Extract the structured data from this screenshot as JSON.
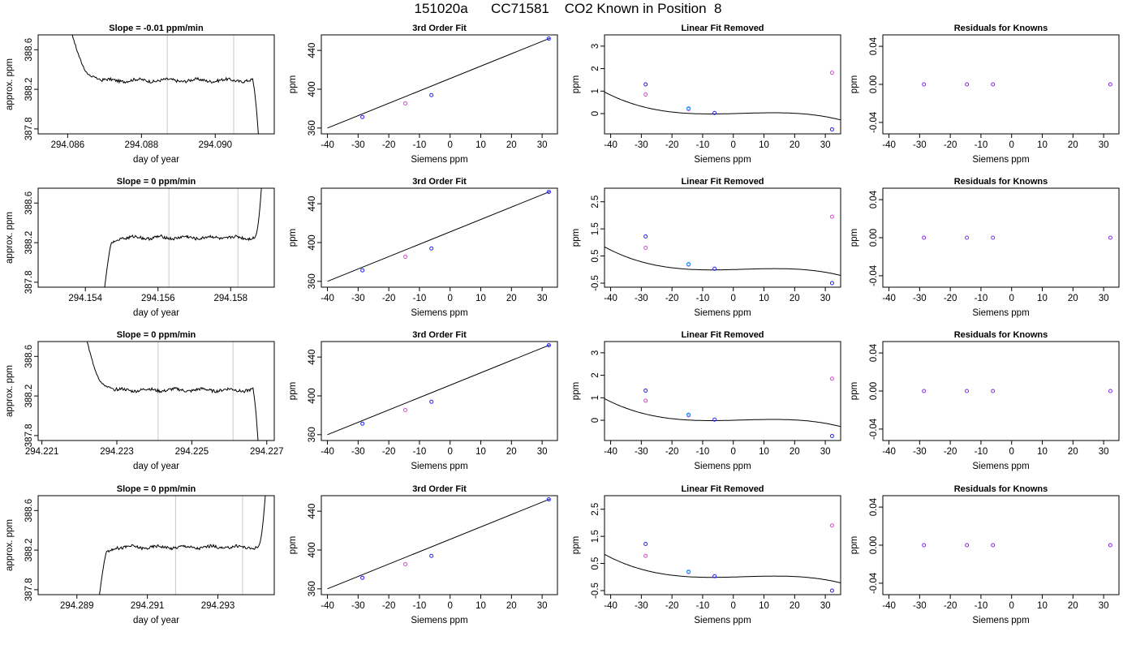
{
  "page_title": "151020a      CC71581    CO2 Known in Position  8",
  "colors": {
    "gridline": "#c8c8c8",
    "point_primary": "#2020ff",
    "point_secondary": "#e040e0",
    "point_alt": "#00a0ff",
    "curve": "#000000"
  },
  "chart_data": [
    {
      "type": "line",
      "title": "Slope =  -0.01  ppm/min",
      "xlabel": "day of year",
      "ylabel": "approx. ppm",
      "xlim": [
        294.0852,
        294.0916
      ],
      "ylim": [
        387.75,
        388.75
      ],
      "xticks": [
        294.086,
        294.088,
        294.09
      ],
      "xtick_labels": [
        "294.086",
        "294.088",
        "294.090"
      ],
      "yticks": [
        387.8,
        388.2,
        388.6
      ],
      "ytick_labels": [
        "387.8",
        "388.2",
        "388.6"
      ],
      "vlines": [
        294.0887,
        294.0905
      ],
      "profile": "high_start_drop_end",
      "x_start": 294.0861,
      "x_end": 294.0912,
      "plateau": 388.29
    },
    {
      "type": "scatter",
      "title": "3rd Order Fit",
      "xlabel": "Siemens ppm",
      "ylabel": "ppm",
      "xlim": [
        -42,
        35
      ],
      "ylim": [
        354,
        456
      ],
      "xticks": [
        -40,
        -30,
        -20,
        -10,
        0,
        10,
        20,
        30
      ],
      "xtick_labels": [
        "-40",
        "-30",
        "-20",
        "-10",
        "0",
        "10",
        "20",
        "30"
      ],
      "yticks": [
        360,
        400,
        440
      ],
      "ytick_labels": [
        "360",
        "400",
        "440"
      ],
      "points": [
        [
          -28.6,
          371.4
        ],
        [
          -14.6,
          385.4
        ],
        [
          -6.1,
          393.9
        ],
        [
          32.2,
          452.2
        ]
      ],
      "curve": [
        [
          -40,
          360
        ],
        [
          32.5,
          452.5
        ]
      ]
    },
    {
      "type": "scatter",
      "title": "Linear Fit Removed",
      "xlabel": "Siemens ppm",
      "ylabel": "ppm",
      "xlim": [
        -42,
        35
      ],
      "ylim": [
        -0.9,
        3.5
      ],
      "xticks": [
        -40,
        -30,
        -20,
        -10,
        0,
        10,
        20,
        30
      ],
      "xtick_labels": [
        "-40",
        "-30",
        "-20",
        "-10",
        "0",
        "10",
        "20",
        "30"
      ],
      "yticks": [
        0,
        1,
        2,
        3
      ],
      "ytick_labels": [
        "0",
        "1",
        "2",
        "3"
      ],
      "points_primary": [
        [
          -28.6,
          1.3
        ],
        [
          -14.6,
          0.23
        ],
        [
          -6.1,
          0.03
        ],
        [
          32.2,
          -0.7
        ]
      ],
      "points_secondary": [
        [
          -28.6,
          0.85
        ],
        [
          -14.6,
          0.2
        ],
        [
          32.2,
          1.82
        ]
      ],
      "curve_coeffs": [
        0.0005,
        0.0036,
        0.000105,
        -1.25e-05
      ]
    },
    {
      "type": "scatter",
      "title": "Residuals for Knowns",
      "xlabel": "Siemens ppm",
      "ylabel": "ppm",
      "xlim": [
        -42,
        35
      ],
      "ylim": [
        -0.052,
        0.052
      ],
      "xticks": [
        -40,
        -30,
        -20,
        -10,
        0,
        10,
        20,
        30
      ],
      "xtick_labels": [
        "-40",
        "-30",
        "-20",
        "-10",
        "0",
        "10",
        "20",
        "30"
      ],
      "yticks": [
        -0.04,
        0,
        0.04
      ],
      "ytick_labels": [
        "-0.04",
        "0.00",
        "0.04"
      ],
      "points": [
        [
          -28.6,
          0
        ],
        [
          -14.6,
          0
        ],
        [
          -6.1,
          0
        ],
        [
          32.2,
          0
        ]
      ]
    },
    {
      "type": "line",
      "title": "Slope =  0  ppm/min",
      "xlabel": "day of year",
      "ylabel": "approx. ppm",
      "xlim": [
        294.1527,
        294.1592
      ],
      "ylim": [
        387.75,
        388.75
      ],
      "xticks": [
        294.154,
        294.156,
        294.158
      ],
      "xtick_labels": [
        "294.154",
        "294.156",
        "294.158"
      ],
      "yticks": [
        387.8,
        388.2,
        388.6
      ],
      "ytick_labels": [
        "387.8",
        "388.2",
        "388.6"
      ],
      "vlines": [
        294.1563,
        294.1582
      ],
      "profile": "low_start_rise_end",
      "x_start": 294.1545,
      "x_end": 294.1589,
      "plateau": 388.25
    },
    {
      "type": "scatter",
      "title": "3rd Order Fit",
      "xlabel": "Siemens ppm",
      "ylabel": "ppm",
      "xlim": [
        -42,
        35
      ],
      "ylim": [
        354,
        456
      ],
      "xticks": [
        -40,
        -30,
        -20,
        -10,
        0,
        10,
        20,
        30
      ],
      "xtick_labels": [
        "-40",
        "-30",
        "-20",
        "-10",
        "0",
        "10",
        "20",
        "30"
      ],
      "yticks": [
        360,
        400,
        440
      ],
      "ytick_labels": [
        "360",
        "400",
        "440"
      ],
      "points": [
        [
          -28.6,
          371.4
        ],
        [
          -14.6,
          385.4
        ],
        [
          -6.1,
          393.9
        ],
        [
          32.2,
          452.2
        ]
      ],
      "curve": [
        [
          -40,
          360
        ],
        [
          32.5,
          452.5
        ]
      ]
    },
    {
      "type": "scatter",
      "title": "Linear Fit Removed",
      "xlabel": "Siemens ppm",
      "ylabel": "ppm",
      "xlim": [
        -42,
        35
      ],
      "ylim": [
        -0.65,
        3.0
      ],
      "xticks": [
        -40,
        -30,
        -20,
        -10,
        0,
        10,
        20,
        30
      ],
      "xtick_labels": [
        "-40",
        "-30",
        "-20",
        "-10",
        "0",
        "10",
        "20",
        "30"
      ],
      "yticks": [
        -0.5,
        0.5,
        1.5,
        2.5
      ],
      "ytick_labels": [
        "-0.5",
        "0.5",
        "1.5",
        "2.5"
      ],
      "points_primary": [
        [
          -28.6,
          1.22
        ],
        [
          -14.6,
          0.2
        ],
        [
          -6.1,
          0.03
        ],
        [
          32.2,
          -0.5
        ]
      ],
      "points_secondary": [
        [
          -28.6,
          0.8
        ],
        [
          -14.6,
          0.18
        ],
        [
          32.2,
          1.95
        ]
      ],
      "curve_coeffs": [
        0.0,
        0.003,
        0.000105,
        -1.05e-05
      ]
    },
    {
      "type": "scatter",
      "title": "Residuals for Knowns",
      "xlabel": "Siemens ppm",
      "ylabel": "ppm",
      "xlim": [
        -42,
        35
      ],
      "ylim": [
        -0.052,
        0.052
      ],
      "xticks": [
        -40,
        -30,
        -20,
        -10,
        0,
        10,
        20,
        30
      ],
      "xtick_labels": [
        "-40",
        "-30",
        "-20",
        "-10",
        "0",
        "10",
        "20",
        "30"
      ],
      "yticks": [
        -0.04,
        0,
        0.04
      ],
      "ytick_labels": [
        "-0.04",
        "0.00",
        "0.04"
      ],
      "points": [
        [
          -28.6,
          0
        ],
        [
          -14.6,
          0
        ],
        [
          -6.1,
          0
        ],
        [
          32.2,
          0
        ]
      ]
    },
    {
      "type": "line",
      "title": "Slope =  0  ppm/min",
      "xlabel": "day of year",
      "ylabel": "approx. ppm",
      "xlim": [
        294.2209,
        294.2272
      ],
      "ylim": [
        387.75,
        388.75
      ],
      "xticks": [
        294.221,
        294.223,
        294.225,
        294.227
      ],
      "xtick_labels": [
        "294.221",
        "294.223",
        "294.225",
        "294.227"
      ],
      "yticks": [
        387.8,
        388.2,
        388.6
      ],
      "ytick_labels": [
        "387.8",
        "388.2",
        "388.6"
      ],
      "vlines": [
        294.2241,
        294.2261
      ],
      "profile": "high_start_drop_end",
      "x_start": 294.2222,
      "x_end": 294.2268,
      "plateau": 388.26
    },
    {
      "type": "scatter",
      "title": "3rd Order Fit",
      "xlabel": "Siemens ppm",
      "ylabel": "ppm",
      "xlim": [
        -42,
        35
      ],
      "ylim": [
        354,
        456
      ],
      "xticks": [
        -40,
        -30,
        -20,
        -10,
        0,
        10,
        20,
        30
      ],
      "xtick_labels": [
        "-40",
        "-30",
        "-20",
        "-10",
        "0",
        "10",
        "20",
        "30"
      ],
      "yticks": [
        360,
        400,
        440
      ],
      "ytick_labels": [
        "360",
        "400",
        "440"
      ],
      "points": [
        [
          -28.6,
          371.4
        ],
        [
          -14.6,
          385.4
        ],
        [
          -6.1,
          393.9
        ],
        [
          32.2,
          452.2
        ]
      ],
      "curve": [
        [
          -40,
          360
        ],
        [
          32.5,
          452.5
        ]
      ]
    },
    {
      "type": "scatter",
      "title": "Linear Fit Removed",
      "xlabel": "Siemens ppm",
      "ylabel": "ppm",
      "xlim": [
        -42,
        35
      ],
      "ylim": [
        -0.9,
        3.5
      ],
      "xticks": [
        -40,
        -30,
        -20,
        -10,
        0,
        10,
        20,
        30
      ],
      "xtick_labels": [
        "-40",
        "-30",
        "-20",
        "-10",
        "0",
        "10",
        "20",
        "30"
      ],
      "yticks": [
        0,
        1,
        2,
        3
      ],
      "ytick_labels": [
        "0",
        "1",
        "2",
        "3"
      ],
      "points_primary": [
        [
          -28.6,
          1.32
        ],
        [
          -14.6,
          0.25
        ],
        [
          -6.1,
          0.03
        ],
        [
          32.2,
          -0.7
        ]
      ],
      "points_secondary": [
        [
          -28.6,
          0.87
        ],
        [
          -14.6,
          0.22
        ],
        [
          32.2,
          1.85
        ]
      ],
      "curve_coeffs": [
        0.0005,
        0.0036,
        0.000105,
        -1.25e-05
      ]
    },
    {
      "type": "scatter",
      "title": "Residuals for Knowns",
      "xlabel": "Siemens ppm",
      "ylabel": "ppm",
      "xlim": [
        -42,
        35
      ],
      "ylim": [
        -0.052,
        0.052
      ],
      "xticks": [
        -40,
        -30,
        -20,
        -10,
        0,
        10,
        20,
        30
      ],
      "xtick_labels": [
        "-40",
        "-30",
        "-20",
        "-10",
        "0",
        "10",
        "20",
        "30"
      ],
      "yticks": [
        -0.04,
        0,
        0.04
      ],
      "ytick_labels": [
        "-0.04",
        "0.00",
        "0.04"
      ],
      "points": [
        [
          -28.6,
          0
        ],
        [
          -14.6,
          0
        ],
        [
          -6.1,
          0
        ],
        [
          32.2,
          0
        ]
      ]
    },
    {
      "type": "line",
      "title": "Slope =  0  ppm/min",
      "xlabel": "day of year",
      "ylabel": "approx. ppm",
      "xlim": [
        294.2879,
        294.2946
      ],
      "ylim": [
        387.75,
        388.75
      ],
      "xticks": [
        294.289,
        294.291,
        294.293
      ],
      "xtick_labels": [
        "294.289",
        "294.291",
        "294.293"
      ],
      "yticks": [
        387.8,
        388.2,
        388.6
      ],
      "ytick_labels": [
        "387.8",
        "388.2",
        "388.6"
      ],
      "vlines": [
        294.2918,
        294.2937
      ],
      "profile": "low_start_rise_end",
      "x_start": 294.2896,
      "x_end": 294.2944,
      "plateau": 388.23
    },
    {
      "type": "scatter",
      "title": "3rd Order Fit",
      "xlabel": "Siemens ppm",
      "ylabel": "ppm",
      "xlim": [
        -42,
        35
      ],
      "ylim": [
        354,
        456
      ],
      "xticks": [
        -40,
        -30,
        -20,
        -10,
        0,
        10,
        20,
        30
      ],
      "xtick_labels": [
        "-40",
        "-30",
        "-20",
        "-10",
        "0",
        "10",
        "20",
        "30"
      ],
      "yticks": [
        360,
        400,
        440
      ],
      "ytick_labels": [
        "360",
        "400",
        "440"
      ],
      "points": [
        [
          -28.6,
          371.4
        ],
        [
          -14.6,
          385.4
        ],
        [
          -6.1,
          393.9
        ],
        [
          32.2,
          452.2
        ]
      ],
      "curve": [
        [
          -40,
          360
        ],
        [
          32.5,
          452.5
        ]
      ]
    },
    {
      "type": "scatter",
      "title": "Linear Fit Removed",
      "xlabel": "Siemens ppm",
      "ylabel": "ppm",
      "xlim": [
        -42,
        35
      ],
      "ylim": [
        -0.65,
        3.0
      ],
      "xticks": [
        -40,
        -30,
        -20,
        -10,
        0,
        10,
        20,
        30
      ],
      "xtick_labels": [
        "-40",
        "-30",
        "-20",
        "-10",
        "0",
        "10",
        "20",
        "30"
      ],
      "yticks": [
        -0.5,
        0.5,
        1.5,
        2.5
      ],
      "ytick_labels": [
        "-0.5",
        "0.5",
        "1.5",
        "2.5"
      ],
      "points_primary": [
        [
          -28.6,
          1.22
        ],
        [
          -14.6,
          0.2
        ],
        [
          -6.1,
          0.03
        ],
        [
          32.2,
          -0.5
        ]
      ],
      "points_secondary": [
        [
          -28.6,
          0.78
        ],
        [
          -14.6,
          0.18
        ],
        [
          32.2,
          1.9
        ]
      ],
      "curve_coeffs": [
        0.0,
        0.003,
        0.000105,
        -1.05e-05
      ]
    },
    {
      "type": "scatter",
      "title": "Residuals for Knowns",
      "xlabel": "Siemens ppm",
      "ylabel": "ppm",
      "xlim": [
        -42,
        35
      ],
      "ylim": [
        -0.052,
        0.052
      ],
      "xticks": [
        -40,
        -30,
        -20,
        -10,
        0,
        10,
        20,
        30
      ],
      "xtick_labels": [
        "-40",
        "-30",
        "-20",
        "-10",
        "0",
        "10",
        "20",
        "30"
      ],
      "yticks": [
        -0.04,
        0,
        0.04
      ],
      "ytick_labels": [
        "-0.04",
        "0.00",
        "0.04"
      ],
      "points": [
        [
          -28.6,
          0
        ],
        [
          -14.6,
          0
        ],
        [
          -6.1,
          0
        ],
        [
          32.2,
          0
        ]
      ]
    }
  ]
}
